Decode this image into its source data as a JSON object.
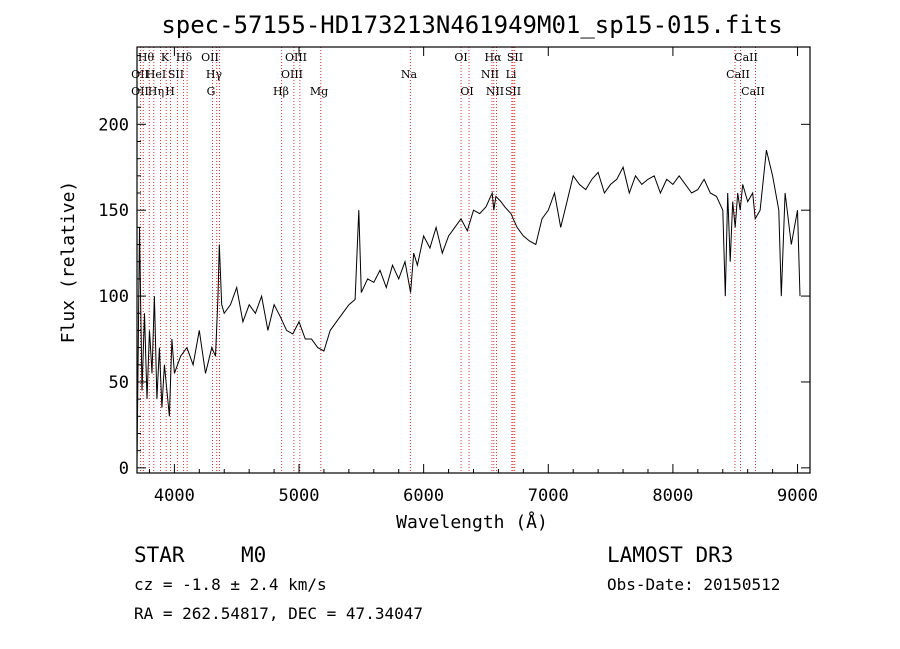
{
  "chart_data": {
    "type": "line",
    "title": "spec-57155-HD173213N461949M01_sp15-015.fits",
    "xlabel": "Wavelength (Å)",
    "ylabel": "Flux (relative)",
    "xlim": [
      3700,
      9100
    ],
    "ylim": [
      -3,
      245
    ],
    "xticks": [
      4000,
      5000,
      6000,
      7000,
      8000,
      9000
    ],
    "yticks": [
      0,
      50,
      100,
      150,
      200
    ],
    "xtick_labels": [
      "4000",
      "5000",
      "6000",
      "7000",
      "8000",
      "9000"
    ],
    "ytick_labels": [
      "0",
      "50",
      "100",
      "150",
      "200"
    ],
    "series": [
      {
        "name": "flux",
        "x": [
          3700,
          3720,
          3740,
          3760,
          3780,
          3800,
          3820,
          3840,
          3860,
          3880,
          3900,
          3920,
          3940,
          3960,
          3980,
          4000,
          4050,
          4100,
          4150,
          4200,
          4250,
          4300,
          4330,
          4350,
          4360,
          4380,
          4400,
          4450,
          4500,
          4550,
          4600,
          4650,
          4700,
          4750,
          4800,
          4850,
          4900,
          4950,
          5000,
          5050,
          5100,
          5150,
          5200,
          5250,
          5300,
          5350,
          5400,
          5450,
          5480,
          5500,
          5550,
          5600,
          5650,
          5700,
          5750,
          5800,
          5850,
          5895,
          5920,
          5950,
          6000,
          6050,
          6100,
          6150,
          6200,
          6250,
          6300,
          6350,
          6400,
          6450,
          6500,
          6550,
          6563,
          6580,
          6620,
          6650,
          6700,
          6750,
          6800,
          6850,
          6900,
          6950,
          7000,
          7050,
          7100,
          7150,
          7200,
          7250,
          7300,
          7350,
          7400,
          7450,
          7500,
          7550,
          7600,
          7650,
          7700,
          7750,
          7800,
          7850,
          7900,
          7950,
          8000,
          8050,
          8100,
          8150,
          8200,
          8250,
          8300,
          8350,
          8400,
          8420,
          8440,
          8460,
          8480,
          8500,
          8520,
          8540,
          8560,
          8600,
          8640,
          8660,
          8700,
          8750,
          8800,
          8850,
          8870,
          8900,
          8950,
          9000,
          9020
        ],
        "y": [
          2,
          140,
          45,
          90,
          40,
          80,
          55,
          100,
          40,
          70,
          35,
          60,
          45,
          30,
          75,
          55,
          65,
          70,
          60,
          80,
          55,
          70,
          65,
          100,
          130,
          95,
          90,
          95,
          105,
          85,
          95,
          90,
          100,
          80,
          95,
          88,
          80,
          78,
          85,
          75,
          75,
          70,
          68,
          80,
          85,
          90,
          95,
          98,
          150,
          102,
          110,
          108,
          115,
          105,
          118,
          110,
          120,
          102,
          125,
          118,
          135,
          128,
          140,
          125,
          135,
          140,
          145,
          138,
          150,
          148,
          152,
          160,
          150,
          158,
          155,
          152,
          148,
          140,
          135,
          132,
          130,
          145,
          150,
          160,
          140,
          155,
          170,
          165,
          162,
          168,
          172,
          160,
          165,
          168,
          175,
          160,
          170,
          165,
          168,
          170,
          160,
          168,
          165,
          170,
          165,
          160,
          162,
          168,
          160,
          158,
          150,
          100,
          160,
          120,
          155,
          140,
          160,
          150,
          165,
          155,
          160,
          145,
          150,
          185,
          170,
          150,
          100,
          160,
          130,
          150,
          100
        ]
      }
    ],
    "lines_top": [
      "Hθ",
      "K",
      "Hδ",
      "OII",
      "OIII",
      "OI",
      "Hα",
      "SII",
      "CaII"
    ],
    "lines_mid": [
      "OII",
      "HeI",
      "SII",
      "Hγ",
      "OIII",
      "Na",
      "NII",
      "Li",
      "CaII"
    ],
    "lines_low": [
      "OII",
      "Hη",
      "H",
      "G",
      "Hβ",
      "Mg",
      "OI",
      "NII",
      "SII",
      "CaII"
    ],
    "line_wavelengths": [
      3727,
      3750,
      3798,
      3835,
      3889,
      3934,
      3968,
      4026,
      4072,
      4102,
      4305,
      4340,
      4363,
      4861,
      4959,
      5007,
      5175,
      5893,
      6300,
      6364,
      6548,
      6563,
      6584,
      6708,
      6717,
      6731,
      8498,
      8542,
      8662
    ]
  },
  "info": {
    "class_label": "STAR",
    "subclass": "M0",
    "survey": "LAMOST DR3",
    "redshift_text": "cz = -1.8 ± 2.4 km/s",
    "obs_date_text": "Obs-Date: 20150512",
    "coords_text": "RA = 262.54817, DEC =  47.34047"
  },
  "colors": {
    "frame": "#000000",
    "spectrum": "#000000",
    "lines": "#cc0000"
  }
}
